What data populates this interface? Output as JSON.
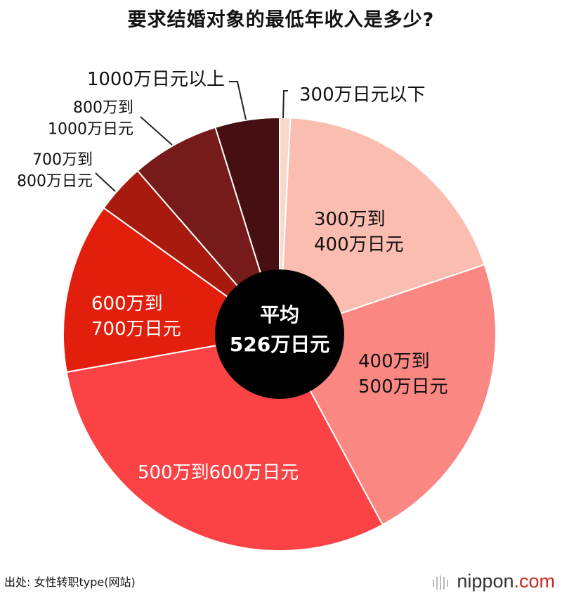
{
  "chart_data": {
    "type": "pie",
    "title": "要求结婚对象的最低年收入是多少?",
    "center_label": [
      "平均",
      "526万日元"
    ],
    "slices": [
      {
        "label": "300万日元以下",
        "value": 0.8,
        "color": "#f7d9cb"
      },
      {
        "label": "300万到 400万日元",
        "value": 19.0,
        "color": "#fbbdb0"
      },
      {
        "label": "400万到 500万日元",
        "value": 22.3,
        "color": "#fb8782"
      },
      {
        "label": "500万到600万日元",
        "value": 30.1,
        "color": "#fb4245"
      },
      {
        "label": "600万到 700万日元",
        "value": 12.7,
        "color": "#e21f0d"
      },
      {
        "label": "700万到 800万日元",
        "value": 3.7,
        "color": "#a81a0d"
      },
      {
        "label": "800万到 1000万日元",
        "value": 6.6,
        "color": "#761b1a"
      },
      {
        "label": "1000万日元以上",
        "value": 4.8,
        "color": "#461012"
      }
    ]
  },
  "source": "出处: 女性转职type(网站)",
  "brand": {
    "name": "nippon",
    "suffix": ".com",
    "accent": "#c8281e"
  }
}
